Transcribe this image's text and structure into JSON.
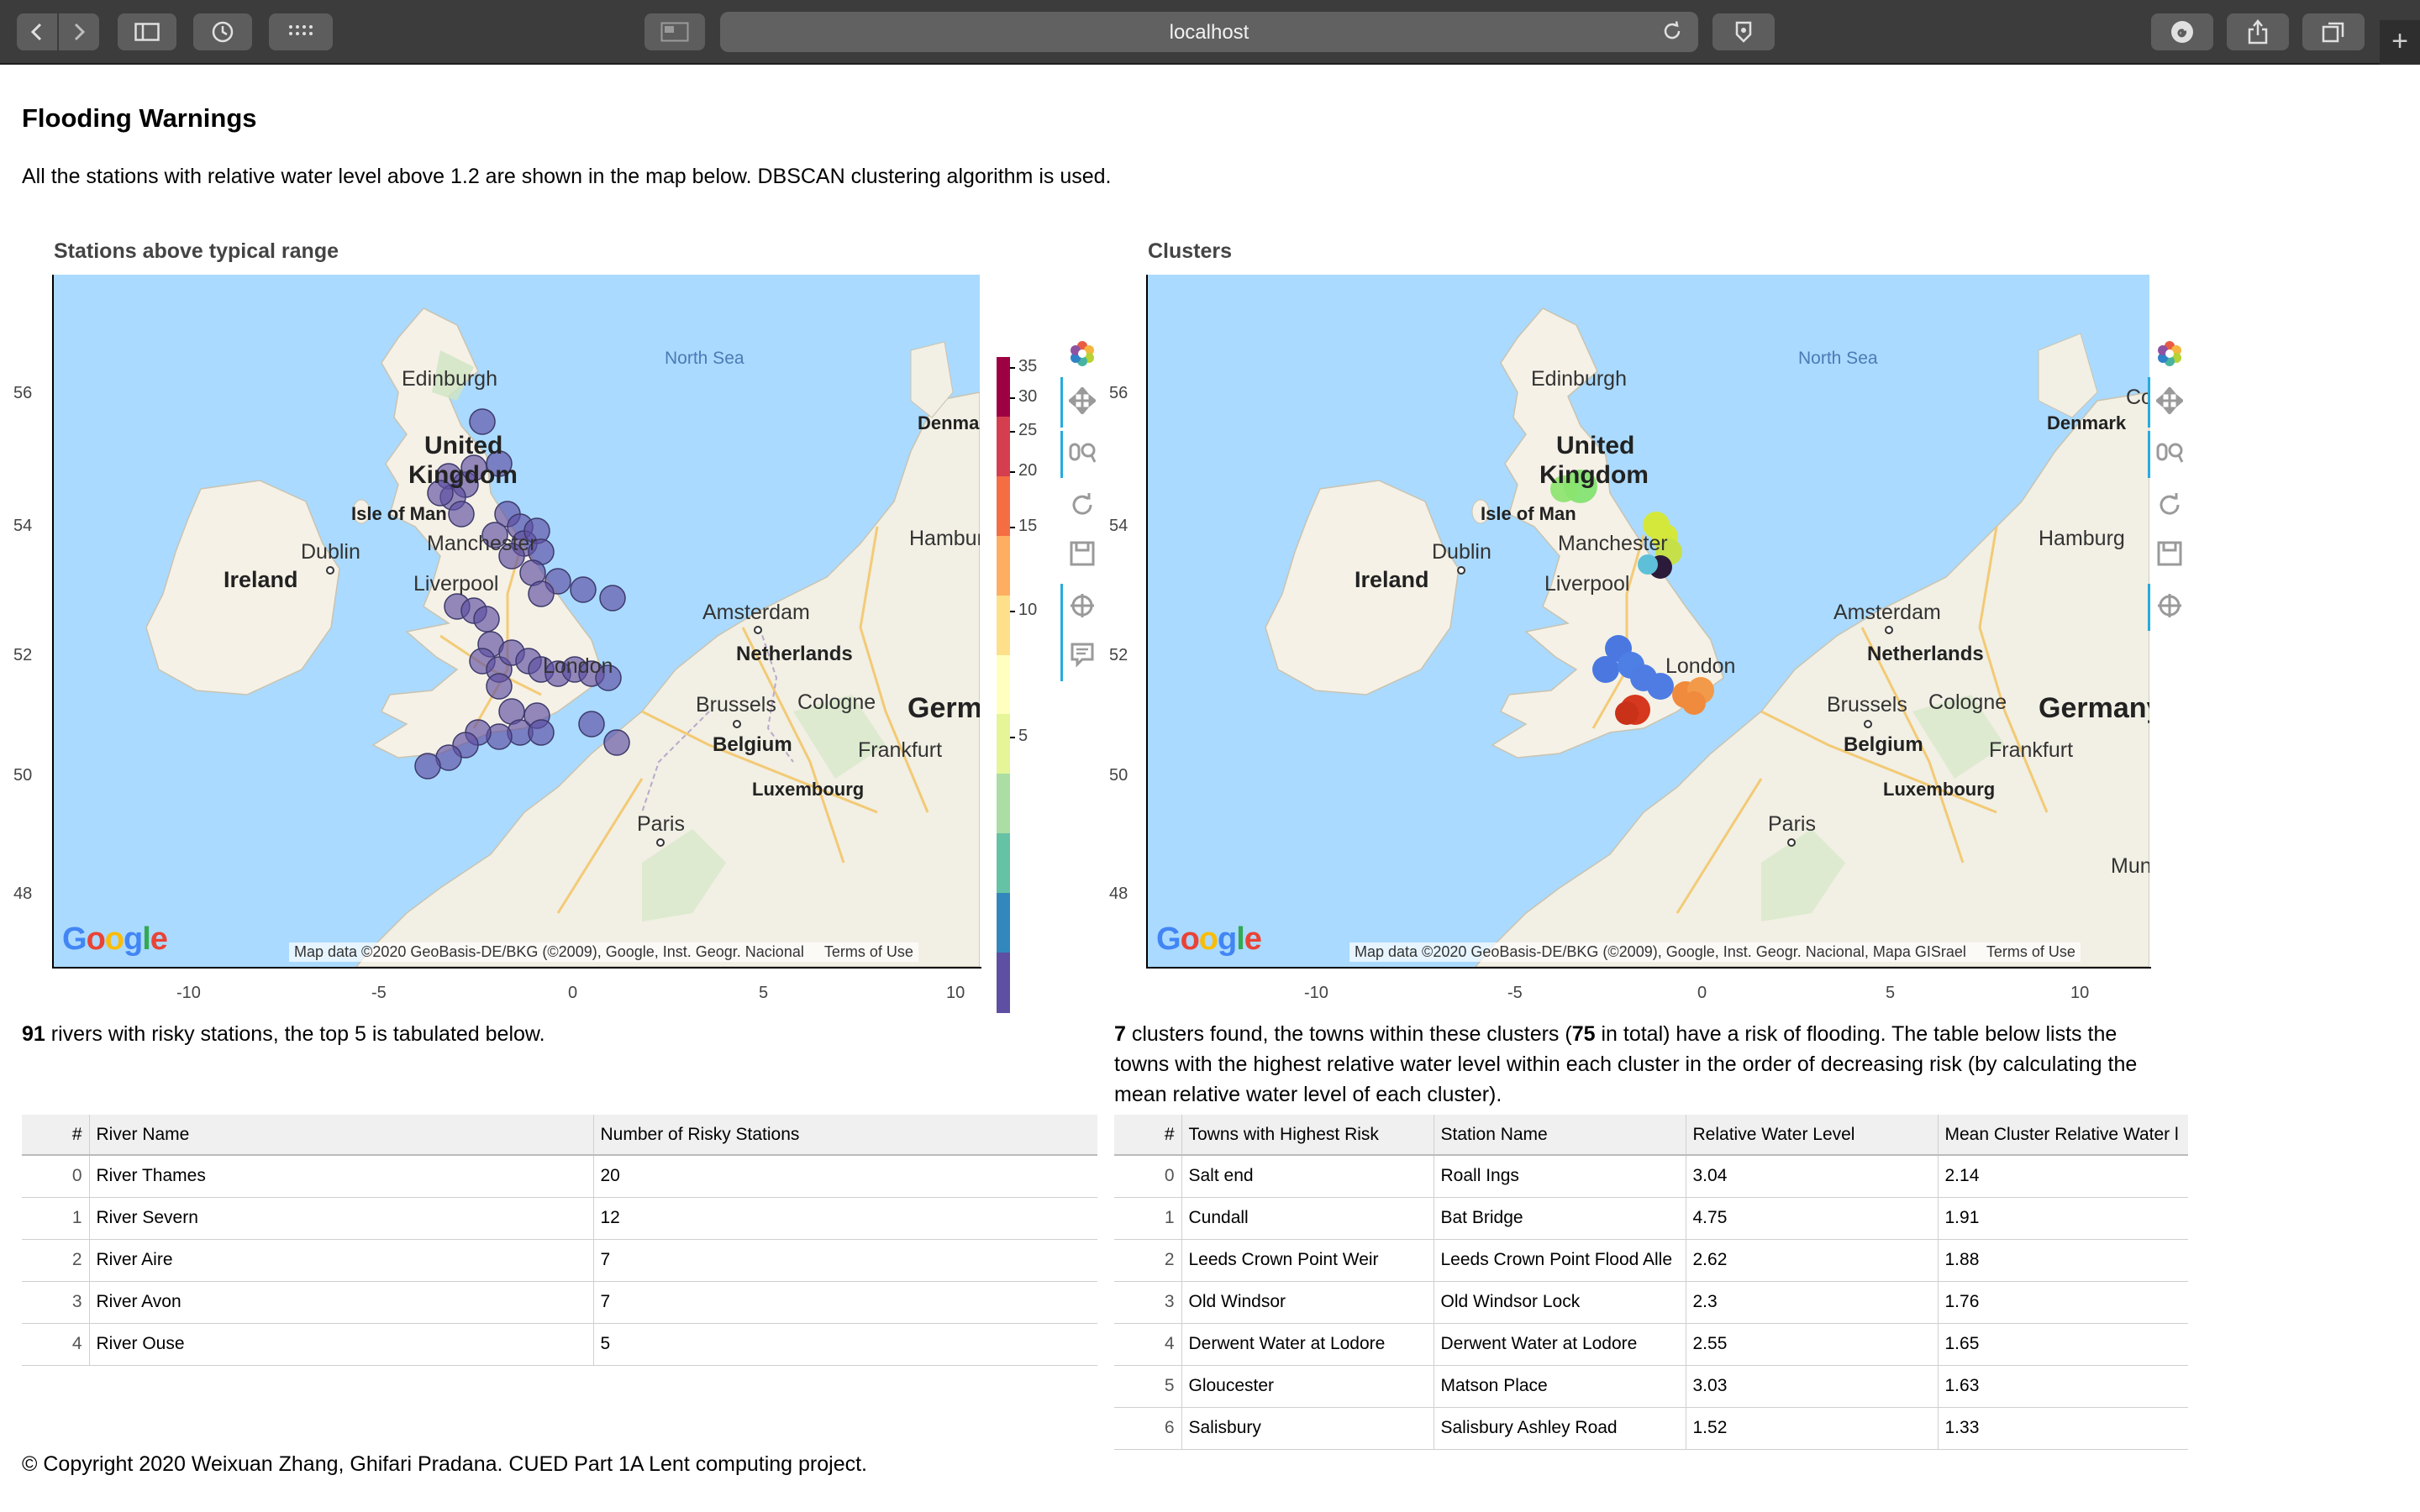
{
  "browser": {
    "url": "localhost"
  },
  "page": {
    "title": "Flooding Warnings",
    "description": "All the stations with relative water level above 1.2 are shown in the map below. DBSCAN clustering algorithm is used.",
    "copyright": "© Copyright 2020 Weixuan Zhang, Ghifari Pradana. CUED Part 1A Lent computing project."
  },
  "map_labels": {
    "north_sea": "North Sea",
    "edinburgh": "Edinburgh",
    "united": "United",
    "kingdom": "Kingdom",
    "isle_of_man": "Isle of Man",
    "dublin": "Dublin",
    "ireland": "Ireland",
    "manchester": "Manchester",
    "liverpool": "Liverpool",
    "london": "London",
    "amsterdam": "Amsterdam",
    "netherlands": "Netherlands",
    "brussels": "Brussels",
    "cologne": "Cologne",
    "belgium": "Belgium",
    "germany": "Germany",
    "frankfurt": "Frankfurt",
    "luxembourg": "Luxembourg",
    "paris": "Paris",
    "denmark": "Denmark",
    "hamburg": "Hamburg",
    "munich": "Mun",
    "copenhagen": "Co",
    "google": "Google",
    "terms": "Terms of Use"
  },
  "map1": {
    "title": "Stations above typical range",
    "attribution": "Map data ©2020 GeoBasis-DE/BKG (©2009), Google, Inst. Geogr. Nacional",
    "colorbar": {
      "labels": [
        "35",
        "30",
        "25",
        "20",
        "15",
        "10",
        "5"
      ],
      "colors": [
        "#9e0142",
        "#d53e4f",
        "#f46d43",
        "#fdae61",
        "#fee08b",
        "#ffffbf",
        "#e6f598",
        "#abdda4",
        "#66c2a5",
        "#3288bd",
        "#5e4fa2"
      ]
    }
  },
  "map2": {
    "title": "Clusters",
    "attribution": "Map data ©2020 GeoBasis-DE/BKG (©2009), Google, Inst. Geogr. Nacional, Mapa GISrael"
  },
  "axes": {
    "y_ticks": [
      "56",
      "54",
      "52",
      "50",
      "48"
    ],
    "x_ticks": [
      "-10",
      "-5",
      "0",
      "5",
      "10"
    ]
  },
  "rivers_summary": {
    "count": "91",
    "text": " rivers with risky stations, the top 5 is tabulated below."
  },
  "rivers_table": {
    "headers": [
      "#",
      "River Name",
      "Number of Risky Stations"
    ],
    "rows": [
      {
        "idx": "0",
        "name": "River Thames",
        "count": "20"
      },
      {
        "idx": "1",
        "name": "River Severn",
        "count": "12"
      },
      {
        "idx": "2",
        "name": "River Aire",
        "count": "7"
      },
      {
        "idx": "3",
        "name": "River Avon",
        "count": "7"
      },
      {
        "idx": "4",
        "name": "River Ouse",
        "count": "5"
      }
    ]
  },
  "clusters_summary": {
    "count": "7",
    "part1": " clusters found, the towns within these clusters (",
    "towns": "75",
    "part2": " in total) have a risk of flooding. The table below lists the towns with the highest relative water level within each cluster in the order of decreasing risk (by calculating the mean relative water level of each cluster)."
  },
  "clusters_table": {
    "headers": [
      "#",
      "Towns with Highest Risk",
      "Station Name",
      "Relative Water Level",
      "Mean Cluster Relative Water l"
    ],
    "rows": [
      {
        "idx": "0",
        "town": "Salt end",
        "station": "Roall Ings",
        "level": "3.04",
        "mean": "2.14"
      },
      {
        "idx": "1",
        "town": "Cundall",
        "station": "Bat Bridge",
        "level": "4.75",
        "mean": "1.91"
      },
      {
        "idx": "2",
        "town": "Leeds Crown Point Weir",
        "station": "Leeds Crown Point Flood Alle",
        "level": "2.62",
        "mean": "1.88"
      },
      {
        "idx": "3",
        "town": "Old Windsor",
        "station": "Old Windsor Lock",
        "level": "2.3",
        "mean": "1.76"
      },
      {
        "idx": "4",
        "town": "Derwent Water at Lodore",
        "station": "Derwent Water at Lodore",
        "level": "2.55",
        "mean": "1.65"
      },
      {
        "idx": "5",
        "town": "Gloucester",
        "station": "Matson Place",
        "level": "3.03",
        "mean": "1.63"
      },
      {
        "idx": "6",
        "town": "Salisbury",
        "station": "Salisbury Ashley Road",
        "level": "1.52",
        "mean": "1.33"
      }
    ]
  }
}
